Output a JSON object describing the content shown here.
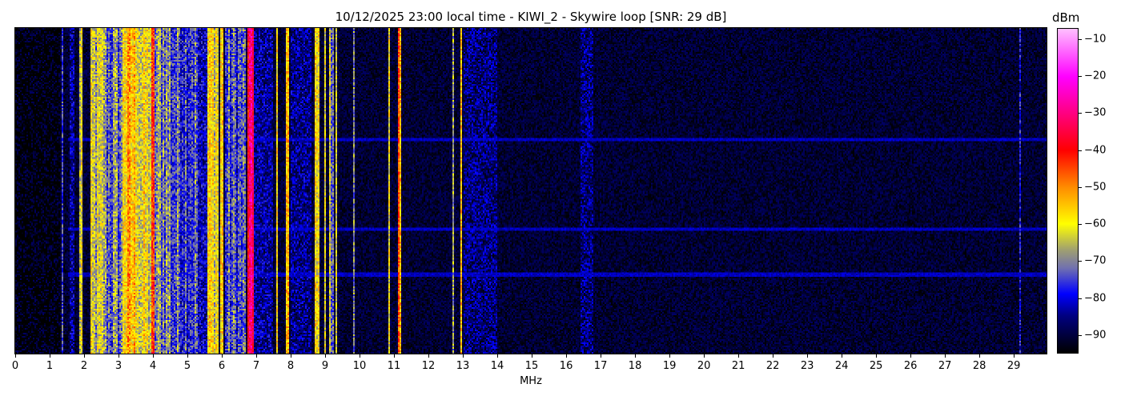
{
  "chart_data": {
    "type": "heatmap",
    "title": "10/12/2025 23:00 local time - KIWI_2 - Skywire loop [SNR: 29 dB]",
    "xlabel": "MHz",
    "ylabel": "",
    "xlim": [
      0,
      29.95
    ],
    "x_ticks": [
      0,
      1,
      2,
      3,
      4,
      5,
      6,
      7,
      8,
      9,
      10,
      11,
      12,
      13,
      14,
      15,
      16,
      17,
      18,
      19,
      20,
      21,
      22,
      23,
      24,
      25,
      26,
      27,
      28,
      29
    ],
    "colorbar": {
      "label": "dBm",
      "range": [
        -95,
        -7
      ],
      "ticks": [
        -10,
        -20,
        -30,
        -40,
        -50,
        -60,
        -70,
        -80,
        -90
      ],
      "colormap": [
        {
          "dbm": -95,
          "color": "#000000"
        },
        {
          "dbm": -85,
          "color": "#000080"
        },
        {
          "dbm": -79,
          "color": "#0000ff"
        },
        {
          "dbm": -72,
          "color": "#7070b0"
        },
        {
          "dbm": -67,
          "color": "#a0a070"
        },
        {
          "dbm": -60,
          "color": "#ffff00"
        },
        {
          "dbm": -50,
          "color": "#ff8c00"
        },
        {
          "dbm": -40,
          "color": "#ff0000"
        },
        {
          "dbm": -30,
          "color": "#ff0080"
        },
        {
          "dbm": -20,
          "color": "#ff00ff"
        },
        {
          "dbm": -7,
          "color": "#ffc0ff"
        }
      ]
    },
    "background_dbm": -91,
    "signal_bands": [
      {
        "from_mhz": 0.0,
        "to_mhz": 1.3,
        "dbm": -95
      },
      {
        "from_mhz": 1.33,
        "to_mhz": 1.38,
        "dbm": -78
      },
      {
        "from_mhz": 1.6,
        "to_mhz": 1.7,
        "dbm": -84
      },
      {
        "from_mhz": 1.88,
        "to_mhz": 1.95,
        "dbm": -62
      },
      {
        "from_mhz": 2.2,
        "to_mhz": 2.6,
        "dbm": -66
      },
      {
        "from_mhz": 2.6,
        "to_mhz": 3.1,
        "dbm": -72
      },
      {
        "from_mhz": 3.1,
        "to_mhz": 3.6,
        "dbm": -56
      },
      {
        "from_mhz": 3.6,
        "to_mhz": 3.95,
        "dbm": -62
      },
      {
        "from_mhz": 3.95,
        "to_mhz": 4.05,
        "dbm": -48
      },
      {
        "from_mhz": 4.05,
        "to_mhz": 4.5,
        "dbm": -70
      },
      {
        "from_mhz": 4.5,
        "to_mhz": 5.3,
        "dbm": -74
      },
      {
        "from_mhz": 5.3,
        "to_mhz": 5.6,
        "dbm": -82
      },
      {
        "from_mhz": 5.6,
        "to_mhz": 5.9,
        "dbm": -60
      },
      {
        "from_mhz": 5.95,
        "to_mhz": 6.05,
        "dbm": -58
      },
      {
        "from_mhz": 6.1,
        "to_mhz": 6.7,
        "dbm": -75
      },
      {
        "from_mhz": 6.75,
        "to_mhz": 6.95,
        "dbm": -35
      },
      {
        "from_mhz": 6.95,
        "to_mhz": 7.5,
        "dbm": -84
      },
      {
        "from_mhz": 7.58,
        "to_mhz": 7.64,
        "dbm": -54
      },
      {
        "from_mhz": 7.88,
        "to_mhz": 7.94,
        "dbm": -56
      },
      {
        "from_mhz": 8.0,
        "to_mhz": 8.6,
        "dbm": -85
      },
      {
        "from_mhz": 8.7,
        "to_mhz": 8.82,
        "dbm": -62
      },
      {
        "from_mhz": 8.98,
        "to_mhz": 9.04,
        "dbm": -56
      },
      {
        "from_mhz": 9.1,
        "to_mhz": 9.25,
        "dbm": -68
      },
      {
        "from_mhz": 9.28,
        "to_mhz": 9.34,
        "dbm": -62
      },
      {
        "from_mhz": 9.8,
        "to_mhz": 9.86,
        "dbm": -74
      },
      {
        "from_mhz": 10.83,
        "to_mhz": 10.88,
        "dbm": -58
      },
      {
        "from_mhz": 11.12,
        "to_mhz": 11.22,
        "dbm": -50
      },
      {
        "from_mhz": 12.68,
        "to_mhz": 12.76,
        "dbm": -72
      },
      {
        "from_mhz": 12.93,
        "to_mhz": 12.98,
        "dbm": -54
      },
      {
        "from_mhz": 13.0,
        "to_mhz": 14.0,
        "dbm": -86
      },
      {
        "from_mhz": 16.4,
        "to_mhz": 16.8,
        "dbm": -86
      },
      {
        "from_mhz": 29.15,
        "to_mhz": 29.22,
        "dbm": -78
      }
    ],
    "horizontal_lines": [
      {
        "time_fraction": 0.34,
        "dbm": -82
      },
      {
        "time_fraction": 0.615,
        "dbm": -82
      },
      {
        "time_fraction": 0.755,
        "dbm": -82
      }
    ]
  }
}
